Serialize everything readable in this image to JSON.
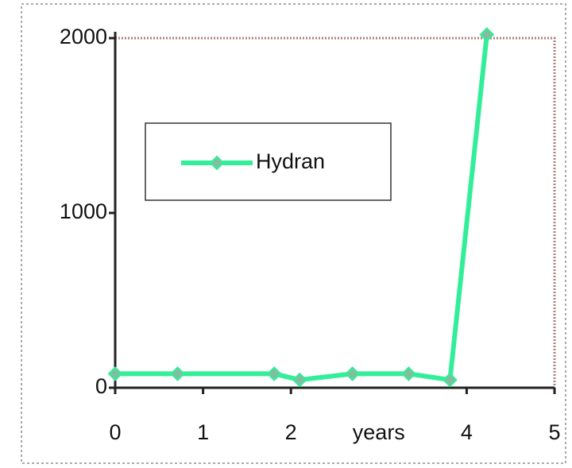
{
  "chart_data": {
    "type": "line",
    "x_label": "years",
    "x": [
      0,
      0.71,
      1.81,
      2.1,
      2.7,
      3.34,
      3.81,
      4.23
    ],
    "series": [
      {
        "name": "Hydran",
        "color": "#33ee99",
        "values": [
          80,
          80,
          80,
          45,
          80,
          80,
          45,
          2020
        ]
      }
    ],
    "xlim": [
      0,
      5
    ],
    "xticks": [
      0,
      1,
      2,
      4,
      5
    ],
    "ylim": [
      0,
      2000
    ],
    "yticks": [
      0,
      1000,
      2000
    ],
    "legend": "upper left"
  }
}
